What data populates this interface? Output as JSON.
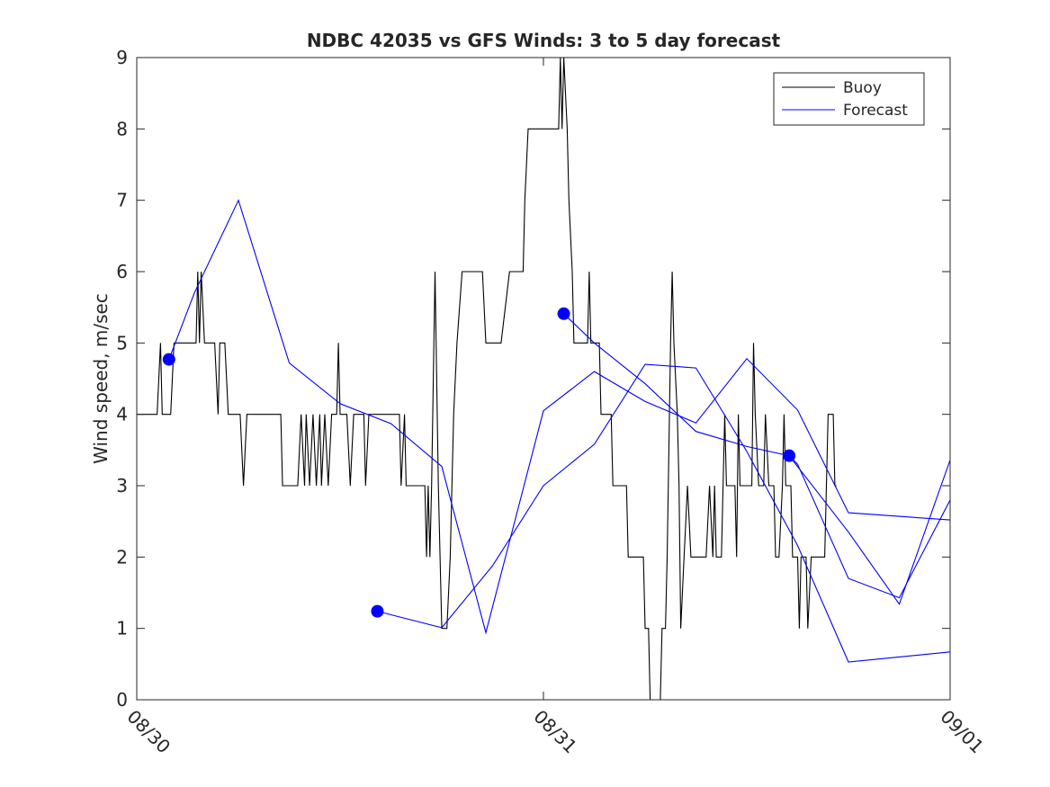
{
  "chart_data": {
    "type": "line",
    "title": "NDBC 42035 vs GFS Winds: 3 to 5 day forecast",
    "xlabel": "",
    "ylabel": "Wind speed, m/sec",
    "xlim": [
      0,
      48
    ],
    "ylim": [
      0,
      9
    ],
    "yticks": [
      0,
      1,
      2,
      3,
      4,
      5,
      6,
      7,
      8,
      9
    ],
    "xticks": [
      {
        "value": 0,
        "label": "08/30"
      },
      {
        "value": 24,
        "label": "08/31"
      },
      {
        "value": 48,
        "label": "09/01"
      }
    ],
    "x_units": "hours since 08/30 00:00",
    "legend": {
      "position": "top-right",
      "entries": [
        "Buoy",
        "Forecast"
      ]
    },
    "colors": {
      "buoy": "#000000",
      "forecast": "#0000ff"
    },
    "series": [
      {
        "name": "Buoy",
        "kind": "step",
        "points": [
          [
            0,
            4
          ],
          [
            1.2,
            4
          ],
          [
            1.4,
            5
          ],
          [
            1.5,
            4
          ],
          [
            2,
            4
          ],
          [
            2.2,
            5
          ],
          [
            3.5,
            5
          ],
          [
            3.6,
            6
          ],
          [
            3.7,
            5
          ],
          [
            3.8,
            6
          ],
          [
            4,
            5
          ],
          [
            4.6,
            5
          ],
          [
            4.8,
            4
          ],
          [
            4.9,
            5
          ],
          [
            5.2,
            5
          ],
          [
            5.4,
            4
          ],
          [
            6.1,
            4
          ],
          [
            6.3,
            3
          ],
          [
            6.5,
            4
          ],
          [
            8.5,
            4
          ],
          [
            8.6,
            3
          ],
          [
            9.5,
            3
          ],
          [
            9.7,
            4
          ],
          [
            9.9,
            3
          ],
          [
            10,
            4
          ],
          [
            10.2,
            3
          ],
          [
            10.4,
            4
          ],
          [
            10.6,
            3
          ],
          [
            10.8,
            4
          ],
          [
            10.9,
            3
          ],
          [
            11.1,
            4
          ],
          [
            11.3,
            3
          ],
          [
            11.5,
            4
          ],
          [
            11.8,
            4
          ],
          [
            11.9,
            5
          ],
          [
            12,
            4
          ],
          [
            12.4,
            4
          ],
          [
            12.6,
            3
          ],
          [
            12.8,
            4
          ],
          [
            13.4,
            4
          ],
          [
            13.5,
            3
          ],
          [
            13.7,
            4
          ],
          [
            15.5,
            4
          ],
          [
            15.6,
            3
          ],
          [
            15.8,
            4
          ],
          [
            15.9,
            3
          ],
          [
            16.5,
            3
          ],
          [
            16.6,
            3
          ],
          [
            17,
            3
          ],
          [
            17.1,
            2
          ],
          [
            17.2,
            3
          ],
          [
            17.3,
            2
          ],
          [
            17.4,
            3
          ],
          [
            17.6,
            6
          ],
          [
            17.8,
            3
          ],
          [
            17.9,
            2
          ],
          [
            18,
            1
          ],
          [
            18.3,
            1
          ],
          [
            18.5,
            2
          ],
          [
            18.7,
            4
          ],
          [
            18.9,
            5
          ],
          [
            19.2,
            6
          ],
          [
            20.4,
            6
          ],
          [
            20.6,
            5
          ],
          [
            21.2,
            5
          ],
          [
            21.5,
            5
          ],
          [
            22,
            6
          ],
          [
            22.8,
            6
          ],
          [
            22.9,
            7
          ],
          [
            23.1,
            8
          ],
          [
            24,
            8
          ],
          [
            24.9,
            8
          ],
          [
            25,
            9
          ],
          [
            25.1,
            8
          ],
          [
            25.2,
            9
          ],
          [
            25.4,
            8
          ],
          [
            25.5,
            7
          ],
          [
            25.7,
            6
          ],
          [
            25.8,
            5
          ],
          [
            26.6,
            5
          ],
          [
            26.7,
            6
          ],
          [
            26.8,
            5
          ],
          [
            27.3,
            5
          ],
          [
            27.4,
            4
          ],
          [
            27.5,
            4
          ],
          [
            28,
            4
          ],
          [
            28.1,
            3
          ],
          [
            28.9,
            3
          ],
          [
            29,
            2
          ],
          [
            29.9,
            2
          ],
          [
            30,
            1
          ],
          [
            30.2,
            1
          ],
          [
            30.3,
            0
          ],
          [
            30.9,
            0
          ],
          [
            31,
            1
          ],
          [
            31.2,
            1
          ],
          [
            31.3,
            2
          ],
          [
            31.5,
            5
          ],
          [
            31.6,
            6
          ],
          [
            31.7,
            5
          ],
          [
            31.9,
            4
          ],
          [
            32,
            3
          ],
          [
            32.1,
            1
          ],
          [
            32.3,
            2
          ],
          [
            32.5,
            3
          ],
          [
            32.7,
            2
          ],
          [
            33.6,
            2
          ],
          [
            33.8,
            3
          ],
          [
            34,
            2
          ],
          [
            34.1,
            3
          ],
          [
            34.2,
            2
          ],
          [
            34.5,
            2
          ],
          [
            34.7,
            4
          ],
          [
            34.8,
            3
          ],
          [
            35.3,
            3
          ],
          [
            35.4,
            2
          ],
          [
            35.5,
            4
          ],
          [
            35.6,
            3
          ],
          [
            35.8,
            3
          ],
          [
            36.3,
            3
          ],
          [
            36.4,
            5
          ],
          [
            36.5,
            4
          ],
          [
            36.7,
            3
          ],
          [
            36.8,
            3
          ],
          [
            37,
            3
          ],
          [
            37.1,
            4
          ],
          [
            37.3,
            3
          ],
          [
            37.5,
            3
          ],
          [
            37.6,
            3
          ],
          [
            37.7,
            2
          ],
          [
            37.9,
            2
          ],
          [
            38.1,
            3
          ],
          [
            38.2,
            4
          ],
          [
            38.3,
            3
          ],
          [
            38.6,
            3
          ],
          [
            38.7,
            2
          ],
          [
            39,
            2
          ],
          [
            39.1,
            1
          ],
          [
            39.2,
            2
          ],
          [
            39.5,
            2
          ],
          [
            39.6,
            1
          ],
          [
            39.8,
            2
          ],
          [
            40.6,
            2
          ],
          [
            40.7,
            3
          ],
          [
            40.8,
            4
          ],
          [
            41.1,
            4
          ],
          [
            41.2,
            3
          ],
          [
            41.3,
            3
          ]
        ]
      },
      {
        "name": "Forecast",
        "kind": "line",
        "marker_start": true,
        "points": [
          [
            1.9,
            4.77
          ],
          [
            3.4,
            5.7
          ],
          [
            6,
            7
          ],
          [
            9,
            4.72
          ],
          [
            12,
            4.15
          ],
          [
            15,
            3.87
          ],
          [
            18,
            3.27
          ],
          [
            20.6,
            0.94
          ],
          [
            24,
            4.05
          ],
          [
            27,
            4.6
          ],
          [
            30,
            4.18
          ],
          [
            33,
            3.88
          ],
          [
            36,
            4.78
          ],
          [
            39,
            4.06
          ],
          [
            42,
            2.62
          ],
          [
            48,
            2.52
          ]
        ]
      },
      {
        "name": "Forecast",
        "kind": "line",
        "marker_start": true,
        "points": [
          [
            14.2,
            1.24
          ],
          [
            18,
            1.01
          ],
          [
            21,
            1.88
          ],
          [
            24,
            3.0
          ],
          [
            27,
            3.58
          ],
          [
            30,
            4.7
          ],
          [
            33,
            4.65
          ],
          [
            36,
            3.48
          ],
          [
            39,
            2.16
          ],
          [
            42,
            0.53
          ],
          [
            45,
            0.6
          ],
          [
            48,
            0.67
          ]
        ]
      },
      {
        "name": "Forecast",
        "kind": "line",
        "marker_start": true,
        "points": [
          [
            25.2,
            5.41
          ],
          [
            27,
            5.0
          ],
          [
            30,
            4.43
          ],
          [
            33,
            3.76
          ],
          [
            36,
            3.55
          ],
          [
            38.5,
            3.42
          ],
          [
            39,
            3.3
          ],
          [
            42,
            1.7
          ],
          [
            45,
            1.43
          ],
          [
            48,
            2.8
          ]
        ]
      },
      {
        "name": "Forecast",
        "kind": "line",
        "marker_start": true,
        "points": [
          [
            38.5,
            3.42
          ],
          [
            42,
            2.35
          ],
          [
            45,
            1.34
          ],
          [
            48,
            3.36
          ]
        ]
      }
    ]
  }
}
